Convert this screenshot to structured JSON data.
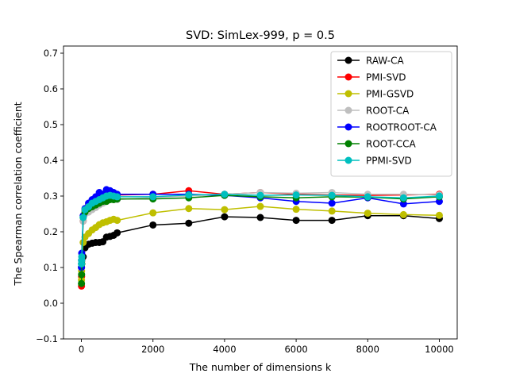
{
  "chart_data": {
    "type": "line",
    "title": "SVD: SimLex-999, p = 0.5",
    "xlabel": "The number of dimensions k",
    "ylabel": "The Spearman correlation coefficient",
    "xlim": [
      -500,
      10500
    ],
    "ylim": [
      -0.1,
      0.72
    ],
    "xticks": [
      0,
      2000,
      4000,
      6000,
      8000,
      10000
    ],
    "xtick_labels": [
      "0",
      "2000",
      "4000",
      "6000",
      "8000",
      "10000"
    ],
    "yticks": [
      -0.1,
      0.0,
      0.1,
      0.2,
      0.3,
      0.4,
      0.5,
      0.6,
      0.7
    ],
    "ytick_labels": [
      "−0.1",
      "0.0",
      "0.1",
      "0.2",
      "0.3",
      "0.4",
      "0.5",
      "0.6",
      "0.7"
    ],
    "grid": false,
    "legend_position": "top-right",
    "x": [
      2,
      5,
      10,
      50,
      100,
      200,
      300,
      400,
      500,
      600,
      700,
      800,
      900,
      1000,
      2000,
      3000,
      4000,
      5000,
      6000,
      7000,
      8000,
      9000,
      10000
    ],
    "series": [
      {
        "name": "RAW-CA",
        "color": "#000000",
        "values": [
          0.1,
          0.11,
          0.12,
          0.13,
          0.155,
          0.165,
          0.168,
          0.17,
          0.17,
          0.172,
          0.185,
          0.187,
          0.19,
          0.197,
          0.219,
          0.224,
          0.242,
          0.24,
          0.232,
          0.232,
          0.245,
          0.245,
          0.237
        ]
      },
      {
        "name": "PMI-SVD",
        "color": "#ff0000",
        "values": [
          0.048,
          0.075,
          0.12,
          0.23,
          0.26,
          0.275,
          0.285,
          0.293,
          0.3,
          0.305,
          0.31,
          0.308,
          0.305,
          0.303,
          0.305,
          0.315,
          0.305,
          0.31,
          0.305,
          0.303,
          0.302,
          0.303,
          0.305
        ]
      },
      {
        "name": "PMI-GSVD",
        "color": "#bfbf00",
        "values": [
          0.065,
          0.09,
          0.12,
          0.17,
          0.185,
          0.195,
          0.205,
          0.212,
          0.22,
          0.225,
          0.228,
          0.232,
          0.235,
          0.232,
          0.253,
          0.265,
          0.262,
          0.271,
          0.263,
          0.258,
          0.252,
          0.248,
          0.246
        ]
      },
      {
        "name": "ROOT-CA",
        "color": "#bfbfbf",
        "values": [
          0.1,
          0.12,
          0.14,
          0.23,
          0.25,
          0.255,
          0.262,
          0.268,
          0.275,
          0.28,
          0.29,
          0.292,
          0.29,
          0.29,
          0.296,
          0.3,
          0.305,
          0.31,
          0.308,
          0.31,
          0.305,
          0.305,
          0.303
        ]
      },
      {
        "name": "ROOTROOT-CA",
        "color": "#0000ff",
        "values": [
          0.1,
          0.12,
          0.14,
          0.245,
          0.265,
          0.28,
          0.29,
          0.298,
          0.31,
          0.305,
          0.318,
          0.315,
          0.31,
          0.305,
          0.305,
          0.305,
          0.302,
          0.295,
          0.285,
          0.28,
          0.295,
          0.278,
          0.285
        ]
      },
      {
        "name": "ROOT-CCA",
        "color": "#008000",
        "values": [
          0.055,
          0.08,
          0.11,
          0.24,
          0.255,
          0.265,
          0.27,
          0.275,
          0.28,
          0.285,
          0.285,
          0.29,
          0.29,
          0.292,
          0.292,
          0.295,
          0.302,
          0.298,
          0.295,
          0.298,
          0.297,
          0.292,
          0.298
        ]
      },
      {
        "name": "PPMI-SVD",
        "color": "#00bfbf",
        "values": [
          0.11,
          0.12,
          0.13,
          0.24,
          0.262,
          0.27,
          0.28,
          0.285,
          0.29,
          0.295,
          0.3,
          0.302,
          0.3,
          0.298,
          0.298,
          0.303,
          0.305,
          0.302,
          0.303,
          0.302,
          0.298,
          0.295,
          0.3
        ]
      }
    ]
  }
}
